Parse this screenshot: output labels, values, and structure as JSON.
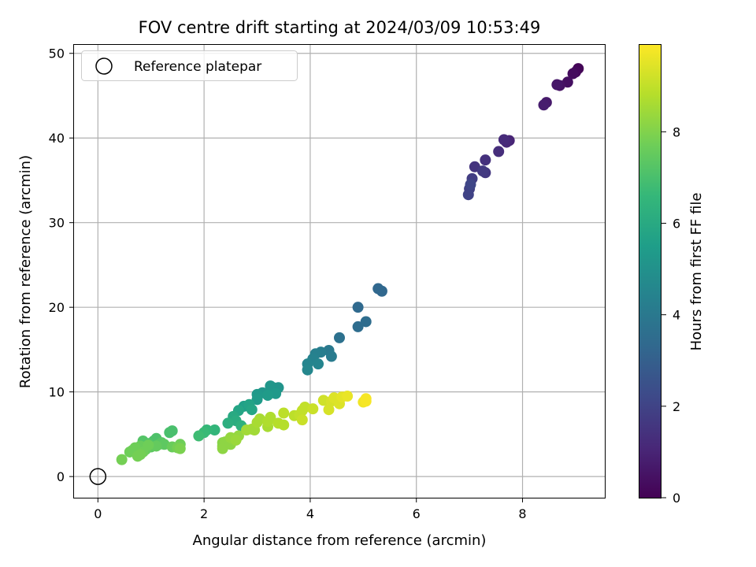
{
  "chart_data": {
    "type": "scatter",
    "title": "FOV centre drift starting at 2024/03/09 10:53:49",
    "xlabel": "Angular distance from reference (arcmin)",
    "ylabel": "Rotation from reference (arcmin)",
    "xlim": [
      -0.45,
      9.55
    ],
    "ylim": [
      -2.5,
      51
    ],
    "xticks": [
      0,
      2,
      4,
      6,
      8
    ],
    "yticks": [
      0,
      10,
      20,
      30,
      40,
      50
    ],
    "grid": true,
    "legend": {
      "position": "top-left",
      "entries": [
        "Reference platepar"
      ]
    },
    "reference_point": {
      "x": 0,
      "y": 0,
      "marker": "open-circle"
    },
    "colorbar": {
      "label": "Hours from first FF file",
      "colormap": "viridis",
      "range": [
        0,
        9.9
      ],
      "ticks": [
        0,
        2,
        4,
        6,
        8
      ]
    },
    "colormap_stops": [
      "#440154",
      "#482878",
      "#3e4989",
      "#31688e",
      "#26828e",
      "#1f9e89",
      "#35b779",
      "#6ece58",
      "#b5de2b",
      "#fde725"
    ],
    "points": [
      {
        "x": 9.05,
        "y": 48.2,
        "t": 0.1
      },
      {
        "x": 9.0,
        "y": 47.8,
        "t": 0.2
      },
      {
        "x": 8.95,
        "y": 47.6,
        "t": 0.3
      },
      {
        "x": 8.85,
        "y": 46.6,
        "t": 0.4
      },
      {
        "x": 8.7,
        "y": 46.2,
        "t": 0.5
      },
      {
        "x": 8.65,
        "y": 46.3,
        "t": 0.6
      },
      {
        "x": 8.45,
        "y": 44.2,
        "t": 0.7
      },
      {
        "x": 8.4,
        "y": 43.9,
        "t": 0.8
      },
      {
        "x": 7.75,
        "y": 39.7,
        "t": 1.0
      },
      {
        "x": 7.7,
        "y": 39.5,
        "t": 1.1
      },
      {
        "x": 7.65,
        "y": 39.8,
        "t": 1.2
      },
      {
        "x": 7.55,
        "y": 38.4,
        "t": 1.3
      },
      {
        "x": 7.3,
        "y": 37.4,
        "t": 1.4
      },
      {
        "x": 7.1,
        "y": 36.6,
        "t": 1.5
      },
      {
        "x": 7.3,
        "y": 35.9,
        "t": 1.6
      },
      {
        "x": 7.25,
        "y": 36.1,
        "t": 1.7
      },
      {
        "x": 7.05,
        "y": 35.2,
        "t": 1.8
      },
      {
        "x": 7.0,
        "y": 34.0,
        "t": 1.9
      },
      {
        "x": 6.98,
        "y": 33.3,
        "t": 2.0
      },
      {
        "x": 7.02,
        "y": 34.5,
        "t": 2.1
      },
      {
        "x": 5.35,
        "y": 21.9,
        "t": 3.3
      },
      {
        "x": 5.28,
        "y": 22.2,
        "t": 3.3
      },
      {
        "x": 4.9,
        "y": 20.0,
        "t": 3.4
      },
      {
        "x": 5.05,
        "y": 18.3,
        "t": 3.5
      },
      {
        "x": 4.9,
        "y": 17.7,
        "t": 3.5
      },
      {
        "x": 4.55,
        "y": 16.4,
        "t": 3.7
      },
      {
        "x": 4.35,
        "y": 14.9,
        "t": 4.0
      },
      {
        "x": 4.4,
        "y": 14.2,
        "t": 4.1
      },
      {
        "x": 4.2,
        "y": 14.7,
        "t": 4.2
      },
      {
        "x": 4.1,
        "y": 14.5,
        "t": 4.3
      },
      {
        "x": 4.05,
        "y": 13.9,
        "t": 4.4
      },
      {
        "x": 4.15,
        "y": 13.3,
        "t": 4.5
      },
      {
        "x": 3.95,
        "y": 13.3,
        "t": 4.5
      },
      {
        "x": 3.95,
        "y": 12.6,
        "t": 4.6
      },
      {
        "x": 3.3,
        "y": 10.5,
        "t": 5.0
      },
      {
        "x": 3.4,
        "y": 10.5,
        "t": 5.1
      },
      {
        "x": 3.25,
        "y": 10.7,
        "t": 5.2
      },
      {
        "x": 3.1,
        "y": 9.9,
        "t": 5.2
      },
      {
        "x": 3.0,
        "y": 9.7,
        "t": 5.3
      },
      {
        "x": 3.35,
        "y": 9.8,
        "t": 5.3
      },
      {
        "x": 3.2,
        "y": 9.6,
        "t": 5.4
      },
      {
        "x": 3.0,
        "y": 9.1,
        "t": 5.4
      },
      {
        "x": 2.75,
        "y": 8.3,
        "t": 5.6
      },
      {
        "x": 2.85,
        "y": 8.5,
        "t": 5.7
      },
      {
        "x": 2.9,
        "y": 7.9,
        "t": 5.8
      },
      {
        "x": 2.65,
        "y": 7.8,
        "t": 5.8
      },
      {
        "x": 2.55,
        "y": 7.1,
        "t": 6.0
      },
      {
        "x": 2.6,
        "y": 6.6,
        "t": 6.1
      },
      {
        "x": 2.45,
        "y": 6.3,
        "t": 6.2
      },
      {
        "x": 2.7,
        "y": 6.0,
        "t": 6.3
      },
      {
        "x": 2.2,
        "y": 5.5,
        "t": 6.5
      },
      {
        "x": 2.05,
        "y": 5.5,
        "t": 6.6
      },
      {
        "x": 2.0,
        "y": 5.2,
        "t": 6.7
      },
      {
        "x": 1.9,
        "y": 4.8,
        "t": 6.8
      },
      {
        "x": 1.4,
        "y": 5.4,
        "t": 7.0
      },
      {
        "x": 1.35,
        "y": 5.2,
        "t": 7.0
      },
      {
        "x": 1.1,
        "y": 4.5,
        "t": 7.1
      },
      {
        "x": 1.05,
        "y": 4.2,
        "t": 7.1
      },
      {
        "x": 0.85,
        "y": 4.2,
        "t": 7.2
      },
      {
        "x": 0.95,
        "y": 3.9,
        "t": 7.2
      },
      {
        "x": 1.15,
        "y": 3.8,
        "t": 7.3
      },
      {
        "x": 1.2,
        "y": 4.0,
        "t": 7.3
      },
      {
        "x": 1.0,
        "y": 3.5,
        "t": 7.4
      },
      {
        "x": 1.25,
        "y": 3.8,
        "t": 7.4
      },
      {
        "x": 1.1,
        "y": 3.6,
        "t": 7.5
      },
      {
        "x": 0.9,
        "y": 3.2,
        "t": 7.5
      },
      {
        "x": 0.8,
        "y": 3.6,
        "t": 7.6
      },
      {
        "x": 0.75,
        "y": 3.3,
        "t": 7.6
      },
      {
        "x": 0.7,
        "y": 3.4,
        "t": 7.7
      },
      {
        "x": 0.65,
        "y": 3.1,
        "t": 7.7
      },
      {
        "x": 0.6,
        "y": 2.9,
        "t": 7.7
      },
      {
        "x": 0.85,
        "y": 2.9,
        "t": 7.7
      },
      {
        "x": 0.8,
        "y": 2.6,
        "t": 7.8
      },
      {
        "x": 0.75,
        "y": 2.4,
        "t": 7.8
      },
      {
        "x": 0.45,
        "y": 2.0,
        "t": 7.8
      },
      {
        "x": 1.4,
        "y": 3.5,
        "t": 7.6
      },
      {
        "x": 1.55,
        "y": 3.8,
        "t": 7.7
      },
      {
        "x": 1.5,
        "y": 3.4,
        "t": 7.8
      },
      {
        "x": 1.55,
        "y": 3.3,
        "t": 7.9
      },
      {
        "x": 0.95,
        "y": 3.7,
        "t": 7.7
      },
      {
        "x": 2.35,
        "y": 4.0,
        "t": 8.1
      },
      {
        "x": 2.35,
        "y": 3.6,
        "t": 8.1
      },
      {
        "x": 2.4,
        "y": 4.1,
        "t": 8.2
      },
      {
        "x": 2.35,
        "y": 3.3,
        "t": 8.2
      },
      {
        "x": 2.5,
        "y": 3.8,
        "t": 8.2
      },
      {
        "x": 2.55,
        "y": 4.5,
        "t": 8.3
      },
      {
        "x": 2.5,
        "y": 4.6,
        "t": 8.3
      },
      {
        "x": 2.65,
        "y": 4.8,
        "t": 8.3
      },
      {
        "x": 2.6,
        "y": 4.3,
        "t": 8.4
      },
      {
        "x": 2.8,
        "y": 5.5,
        "t": 8.5
      },
      {
        "x": 2.95,
        "y": 5.5,
        "t": 8.5
      },
      {
        "x": 2.9,
        "y": 5.6,
        "t": 8.5
      },
      {
        "x": 3.0,
        "y": 6.4,
        "t": 8.6
      },
      {
        "x": 3.05,
        "y": 6.8,
        "t": 8.6
      },
      {
        "x": 3.2,
        "y": 5.9,
        "t": 8.6
      },
      {
        "x": 3.25,
        "y": 7.0,
        "t": 8.7
      },
      {
        "x": 3.2,
        "y": 6.5,
        "t": 8.7
      },
      {
        "x": 3.4,
        "y": 6.3,
        "t": 8.8
      },
      {
        "x": 3.5,
        "y": 6.1,
        "t": 8.8
      },
      {
        "x": 3.5,
        "y": 7.5,
        "t": 8.9
      },
      {
        "x": 3.7,
        "y": 7.2,
        "t": 8.9
      },
      {
        "x": 3.8,
        "y": 7.3,
        "t": 9.0
      },
      {
        "x": 3.85,
        "y": 7.8,
        "t": 9.0
      },
      {
        "x": 3.9,
        "y": 8.2,
        "t": 9.0
      },
      {
        "x": 3.85,
        "y": 6.7,
        "t": 9.1
      },
      {
        "x": 4.05,
        "y": 8.0,
        "t": 9.1
      },
      {
        "x": 4.25,
        "y": 9.0,
        "t": 9.2
      },
      {
        "x": 4.35,
        "y": 7.9,
        "t": 9.3
      },
      {
        "x": 4.4,
        "y": 8.9,
        "t": 9.3
      },
      {
        "x": 4.45,
        "y": 9.3,
        "t": 9.4
      },
      {
        "x": 4.55,
        "y": 8.6,
        "t": 9.4
      },
      {
        "x": 4.6,
        "y": 9.4,
        "t": 9.5
      },
      {
        "x": 4.7,
        "y": 9.5,
        "t": 9.6
      },
      {
        "x": 5.0,
        "y": 8.8,
        "t": 9.7
      },
      {
        "x": 5.05,
        "y": 9.2,
        "t": 9.8
      },
      {
        "x": 5.05,
        "y": 8.9,
        "t": 9.8
      }
    ]
  }
}
